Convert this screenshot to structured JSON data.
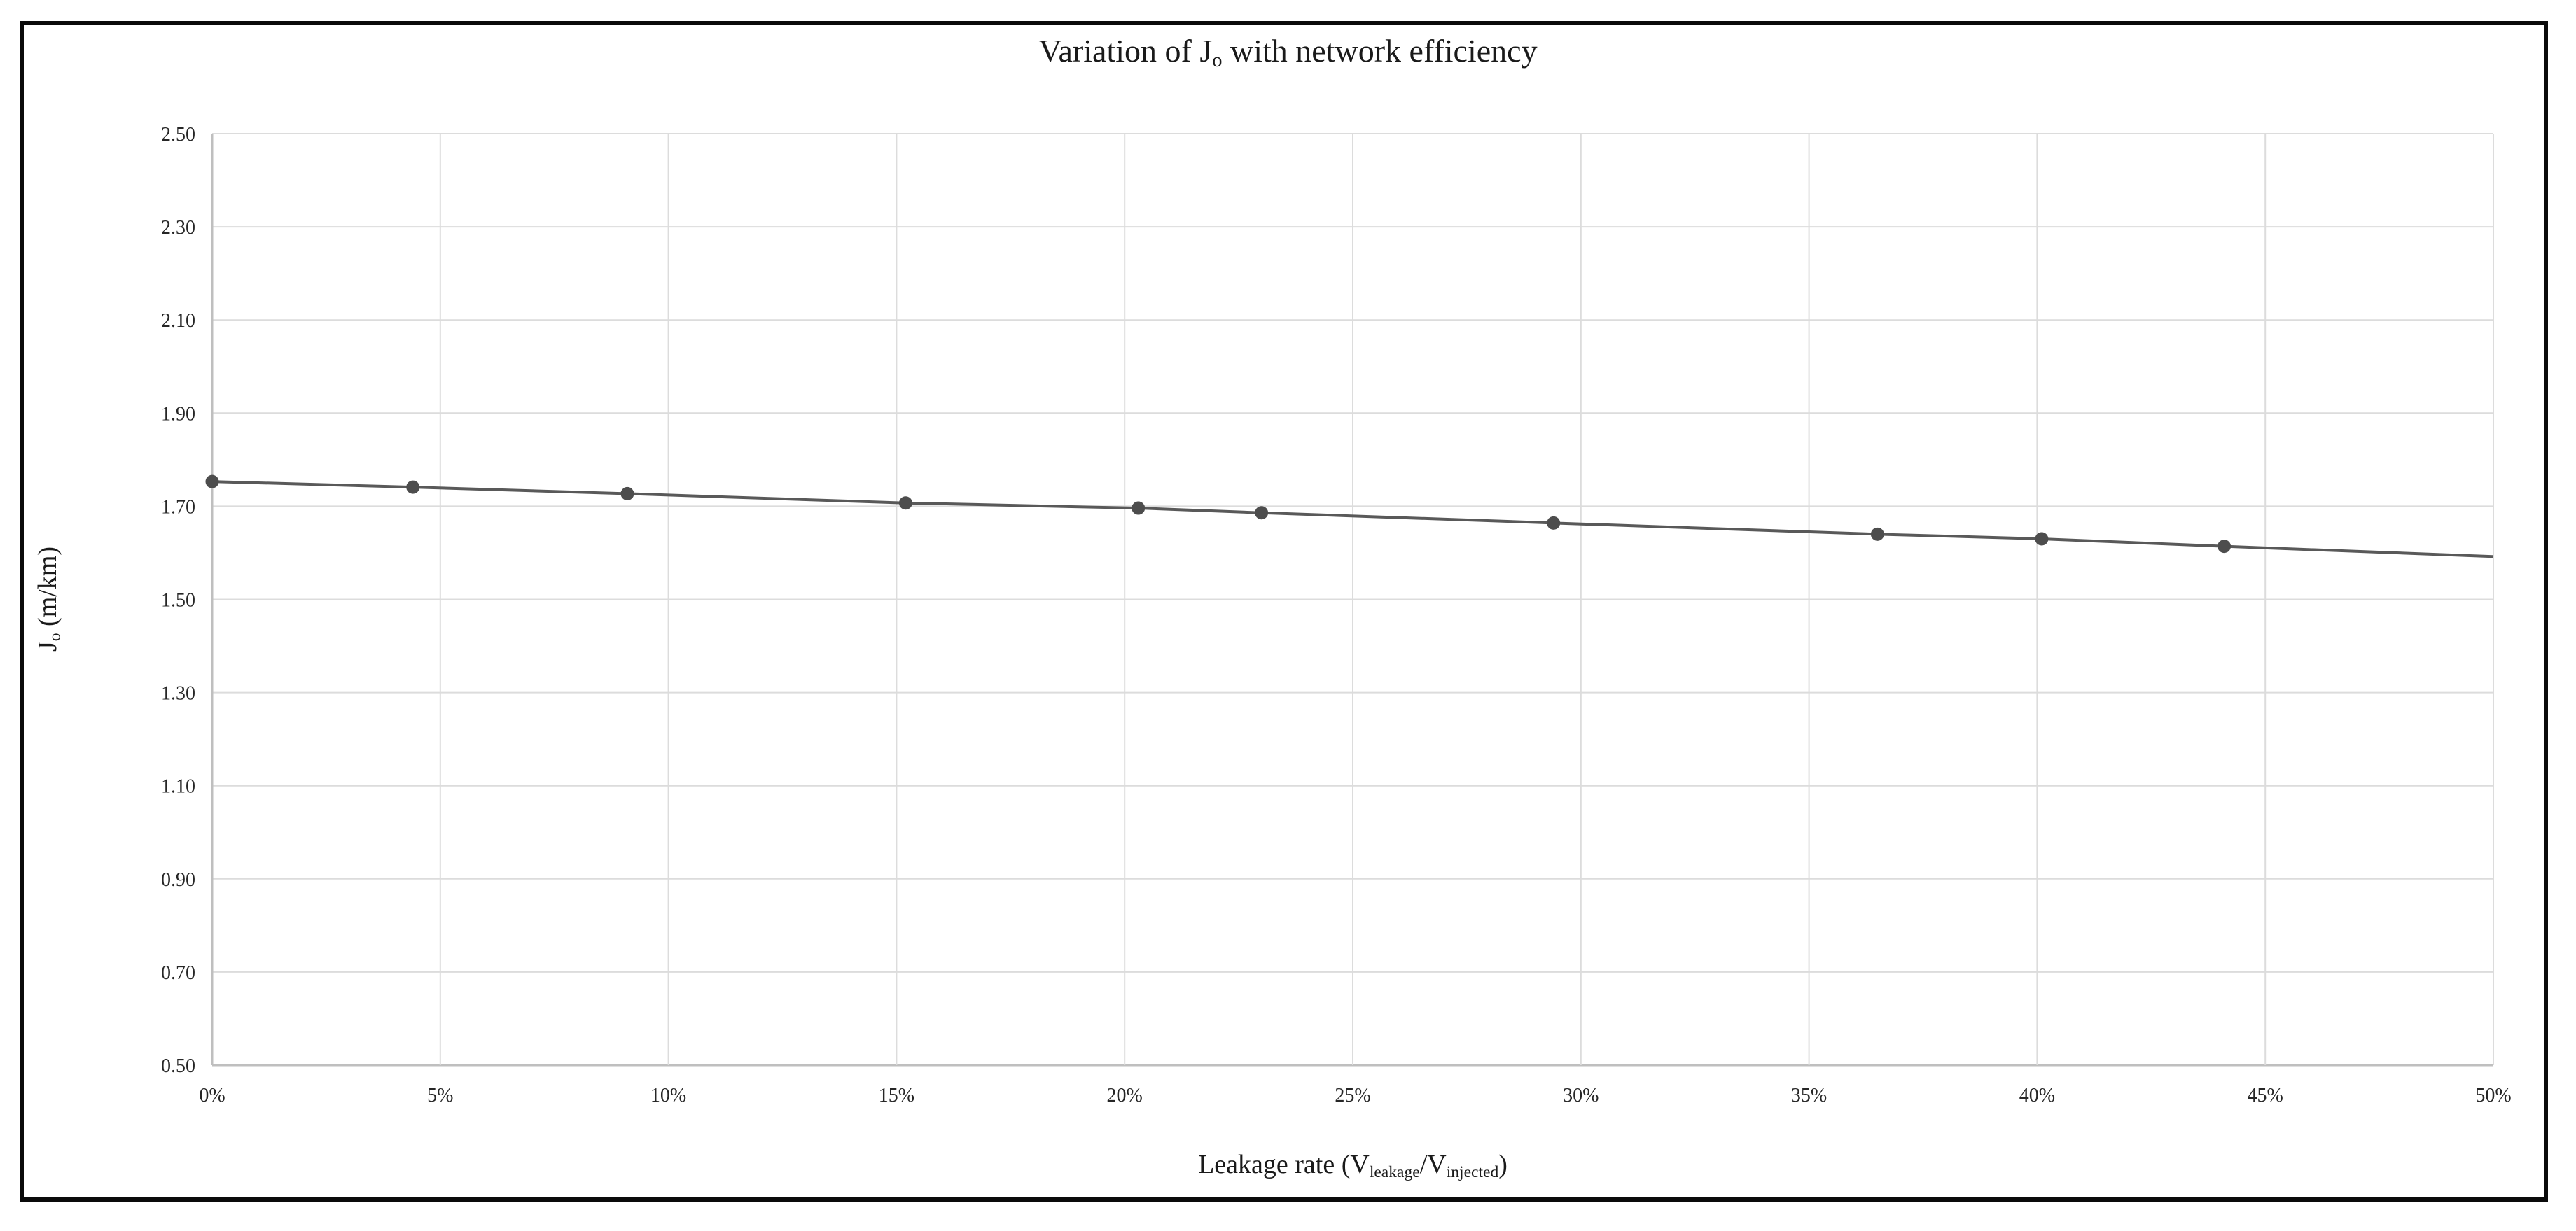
{
  "title": {
    "p1": "Variation of J",
    "s1": "o",
    "p2": " with network efficiency"
  },
  "y_axis": {
    "title_p1": "J",
    "title_s1": "o",
    "title_p2": " (m/km)",
    "tick_labels": [
      "2.50",
      "2.30",
      "2.10",
      "1.90",
      "1.70",
      "1.50",
      "1.30",
      "1.10",
      "0.90",
      "0.70",
      "0.50"
    ]
  },
  "x_axis": {
    "title_p1": "Leakage rate (V",
    "title_s1": "leakage",
    "title_p2": "/V",
    "title_s2": "injected",
    "title_p3": ")",
    "tick_labels": [
      "0%",
      "5%",
      "10%",
      "15%",
      "20%",
      "25%",
      "30%",
      "35%",
      "40%",
      "45%",
      "50%"
    ]
  },
  "chart_data": {
    "type": "line",
    "title": "Variation of Jo with network efficiency",
    "xlabel": "Leakage rate (Vleakage/Vinjected)",
    "ylabel": "Jo (m/km)",
    "xlim": [
      0,
      50
    ],
    "ylim": [
      0.5,
      2.5
    ],
    "x_tick_step": 5,
    "y_tick_step": 0.2,
    "grid": true,
    "legend": "none",
    "series": [
      {
        "name": "Jo",
        "color": "#595959",
        "marker_color": "#4d4d4d",
        "points": [
          {
            "x": 0.0,
            "y": 1.753,
            "marker": true
          },
          {
            "x": 4.4,
            "y": 1.741,
            "marker": true
          },
          {
            "x": 9.1,
            "y": 1.727,
            "marker": true
          },
          {
            "x": 15.2,
            "y": 1.707,
            "marker": true
          },
          {
            "x": 20.3,
            "y": 1.696,
            "marker": true
          },
          {
            "x": 23.0,
            "y": 1.686,
            "marker": true
          },
          {
            "x": 29.4,
            "y": 1.664,
            "marker": true
          },
          {
            "x": 36.5,
            "y": 1.64,
            "marker": true
          },
          {
            "x": 40.1,
            "y": 1.63,
            "marker": true
          },
          {
            "x": 44.1,
            "y": 1.614,
            "marker": true
          },
          {
            "x": 50.0,
            "y": 1.592,
            "marker": false
          }
        ]
      }
    ]
  },
  "colors": {
    "gridline": "#dcdcdc",
    "axis_line": "#bfbfbf",
    "series_line": "#595959",
    "marker": "#4d4d4d",
    "text": "#262626",
    "frame_border": "#0a0a0a"
  }
}
